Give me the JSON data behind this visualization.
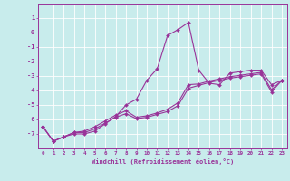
{
  "xlabel": "Windchill (Refroidissement éolien,°C)",
  "background_color": "#c8ecec",
  "grid_color": "#b0d8d8",
  "line_color": "#993399",
  "x": [
    0,
    1,
    2,
    3,
    4,
    5,
    6,
    7,
    8,
    9,
    10,
    11,
    12,
    13,
    14,
    15,
    16,
    17,
    18,
    19,
    20,
    21,
    22,
    23
  ],
  "line1": [
    -6.5,
    -7.5,
    -7.2,
    -7.0,
    -7.0,
    -6.8,
    -6.3,
    -5.8,
    -5.0,
    -4.6,
    -3.3,
    -2.5,
    -0.2,
    0.2,
    0.7,
    -2.6,
    -3.5,
    -3.6,
    -2.8,
    -2.7,
    -2.6,
    -2.6,
    -3.6,
    -3.3
  ],
  "line2": [
    -6.5,
    -7.5,
    -7.2,
    -6.9,
    -6.8,
    -6.5,
    -6.1,
    -5.7,
    -5.4,
    -5.85,
    -5.75,
    -5.55,
    -5.3,
    -4.85,
    -3.6,
    -3.55,
    -3.35,
    -3.2,
    -3.05,
    -2.95,
    -2.85,
    -2.75,
    -3.95,
    -3.3
  ],
  "line3": [
    -6.5,
    -7.5,
    -7.2,
    -6.9,
    -6.9,
    -6.65,
    -6.25,
    -5.85,
    -5.6,
    -5.95,
    -5.85,
    -5.65,
    -5.45,
    -5.05,
    -3.85,
    -3.65,
    -3.45,
    -3.3,
    -3.15,
    -3.05,
    -2.95,
    -2.85,
    -4.1,
    -3.3
  ],
  "ylim": [
    -8,
    2
  ],
  "xlim": [
    -0.5,
    23.5
  ],
  "yticks": [
    1,
    0,
    -1,
    -2,
    -3,
    -4,
    -5,
    -6,
    -7
  ],
  "xticks": [
    0,
    1,
    2,
    3,
    4,
    5,
    6,
    7,
    8,
    9,
    10,
    11,
    12,
    13,
    14,
    15,
    16,
    17,
    18,
    19,
    20,
    21,
    22,
    23
  ]
}
